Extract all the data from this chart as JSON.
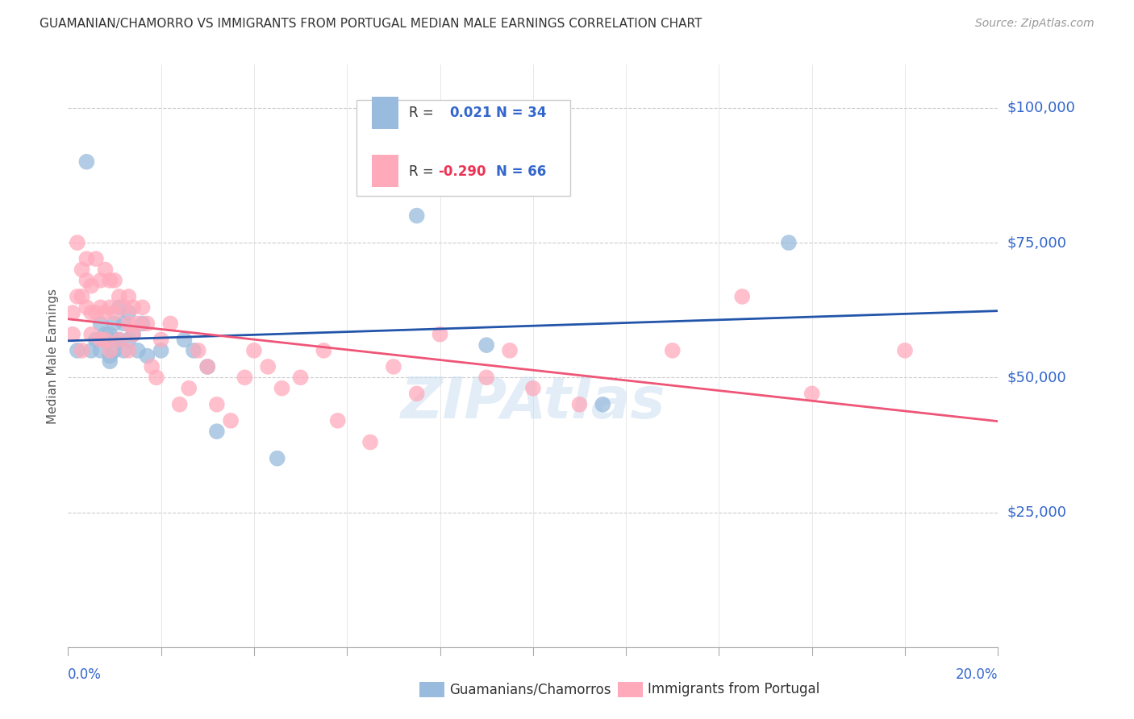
{
  "title": "GUAMANIAN/CHAMORRO VS IMMIGRANTS FROM PORTUGAL MEDIAN MALE EARNINGS CORRELATION CHART",
  "source": "Source: ZipAtlas.com",
  "ylabel": "Median Male Earnings",
  "ytick_labels": [
    "$25,000",
    "$50,000",
    "$75,000",
    "$100,000"
  ],
  "ytick_values": [
    25000,
    50000,
    75000,
    100000
  ],
  "xmin": 0.0,
  "xmax": 0.2,
  "ymin": 0,
  "ymax": 108000,
  "blue_color": "#99BBDD",
  "pink_color": "#FFAABB",
  "blue_line_color": "#2255AA",
  "pink_line_color": "#EE5577",
  "watermark": "ZIPAtlas",
  "blue_x": [
    0.002,
    0.004,
    0.005,
    0.006,
    0.007,
    0.007,
    0.008,
    0.008,
    0.009,
    0.009,
    0.009,
    0.01,
    0.01,
    0.01,
    0.011,
    0.011,
    0.012,
    0.012,
    0.013,
    0.013,
    0.014,
    0.015,
    0.016,
    0.017,
    0.02,
    0.025,
    0.027,
    0.03,
    0.032,
    0.045,
    0.075,
    0.09,
    0.115,
    0.155
  ],
  "blue_y": [
    55000,
    90000,
    55000,
    57000,
    60000,
    55000,
    58000,
    57000,
    58000,
    54000,
    53000,
    60000,
    57000,
    55000,
    63000,
    57000,
    60000,
    55000,
    62000,
    57000,
    58000,
    55000,
    60000,
    54000,
    55000,
    57000,
    55000,
    52000,
    40000,
    35000,
    80000,
    56000,
    45000,
    75000
  ],
  "pink_x": [
    0.001,
    0.001,
    0.002,
    0.002,
    0.003,
    0.003,
    0.003,
    0.004,
    0.004,
    0.004,
    0.005,
    0.005,
    0.005,
    0.006,
    0.006,
    0.007,
    0.007,
    0.007,
    0.008,
    0.008,
    0.008,
    0.009,
    0.009,
    0.009,
    0.01,
    0.01,
    0.011,
    0.011,
    0.012,
    0.013,
    0.013,
    0.013,
    0.014,
    0.014,
    0.015,
    0.016,
    0.017,
    0.018,
    0.019,
    0.02,
    0.022,
    0.024,
    0.026,
    0.028,
    0.03,
    0.032,
    0.035,
    0.038,
    0.04,
    0.043,
    0.046,
    0.05,
    0.055,
    0.058,
    0.065,
    0.07,
    0.075,
    0.08,
    0.09,
    0.095,
    0.1,
    0.11,
    0.13,
    0.145,
    0.16,
    0.18
  ],
  "pink_y": [
    62000,
    58000,
    75000,
    65000,
    70000,
    65000,
    55000,
    72000,
    68000,
    63000,
    67000,
    62000,
    58000,
    72000,
    62000,
    68000,
    63000,
    57000,
    70000,
    62000,
    57000,
    68000,
    63000,
    55000,
    68000,
    62000,
    65000,
    57000,
    63000,
    65000,
    60000,
    55000,
    63000,
    58000,
    60000,
    63000,
    60000,
    52000,
    50000,
    57000,
    60000,
    45000,
    48000,
    55000,
    52000,
    45000,
    42000,
    50000,
    55000,
    52000,
    48000,
    50000,
    55000,
    42000,
    38000,
    52000,
    47000,
    58000,
    50000,
    55000,
    48000,
    45000,
    55000,
    65000,
    47000,
    55000
  ]
}
